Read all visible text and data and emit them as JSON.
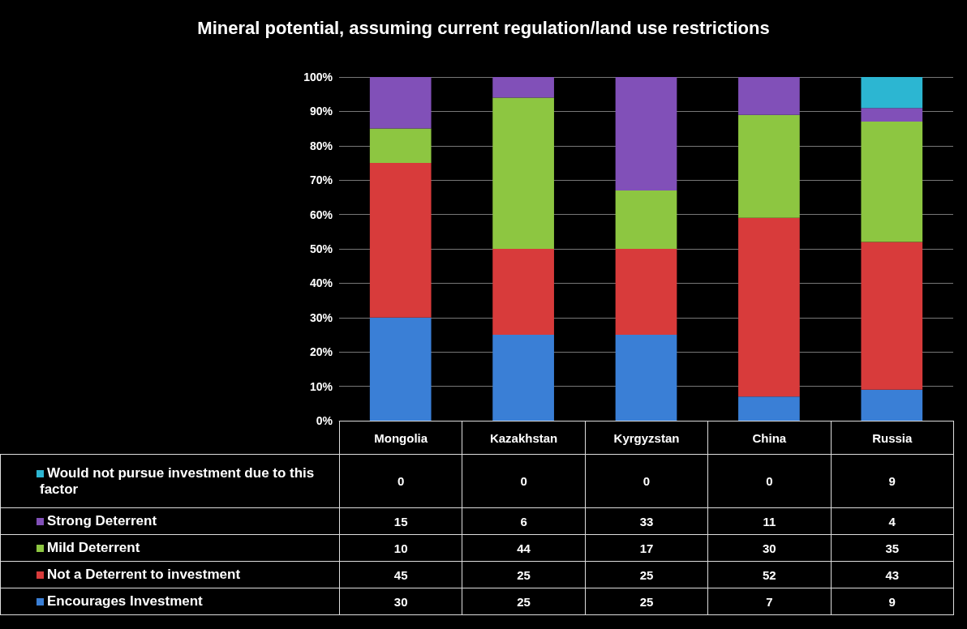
{
  "chart_data": {
    "type": "bar",
    "title": "Mineral potential, assuming current regulation/land use restrictions",
    "categories": [
      "Mongolia",
      "Kazakhstan",
      "Kyrgyzstan",
      "China",
      "Russia"
    ],
    "stacked": true,
    "series": [
      {
        "name": "Encourages Investment",
        "color": "#3a7fd6",
        "values": [
          30,
          25,
          25,
          7,
          9
        ]
      },
      {
        "name": "Not a Deterrent to investment",
        "color": "#d83b3b",
        "values": [
          45,
          25,
          25,
          52,
          43
        ]
      },
      {
        "name": "Mild Deterrent",
        "color": "#8dc641",
        "values": [
          10,
          44,
          17,
          30,
          35
        ]
      },
      {
        "name": "Strong Deterrent",
        "color": "#8150b8",
        "values": [
          15,
          6,
          33,
          11,
          4
        ]
      },
      {
        "name": "Would not pursue investment due to this factor",
        "color": "#2cb6d2",
        "values": [
          0,
          0,
          0,
          0,
          9
        ]
      }
    ],
    "ylim": [
      0,
      100
    ],
    "yticks": [
      {
        "value": 0,
        "label": "0%"
      },
      {
        "value": 10,
        "label": "10%"
      },
      {
        "value": 20,
        "label": "20%"
      },
      {
        "value": 30,
        "label": "30%"
      },
      {
        "value": 40,
        "label": "40%"
      },
      {
        "value": 50,
        "label": "50%"
      },
      {
        "value": 60,
        "label": "60%"
      },
      {
        "value": 70,
        "label": "70%"
      },
      {
        "value": 80,
        "label": "80%"
      },
      {
        "value": 90,
        "label": "90%"
      },
      {
        "value": 100,
        "label": "100%"
      }
    ],
    "grid": "y",
    "legend": "bottom",
    "data_labels": true
  }
}
